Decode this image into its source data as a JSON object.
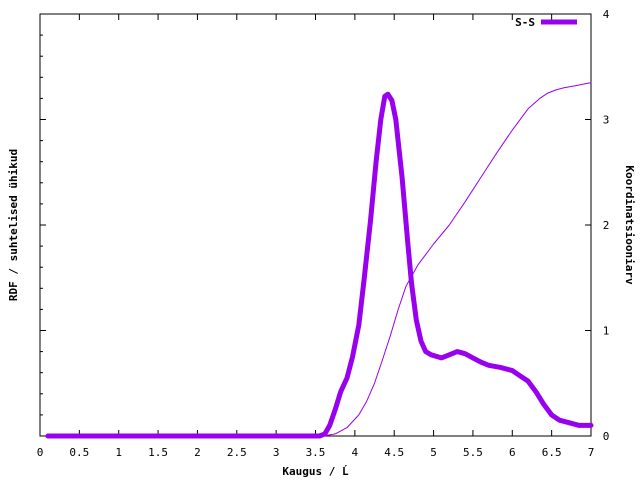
{
  "chart_data": {
    "type": "line",
    "title": "",
    "xlabel": "Kaugus / Ĺ",
    "ylabel": "RDF / suhtelised ühikud",
    "y2label": "Koordinatsiooniarv",
    "xlim": [
      0,
      7
    ],
    "y2lim": [
      0,
      4
    ],
    "xticks": [
      "0",
      "0.5",
      "1",
      "1.5",
      "2",
      "2.5",
      "3",
      "3.5",
      "4",
      "4.5",
      "5",
      "5.5",
      "6",
      "6.5",
      "7"
    ],
    "y2ticks": [
      "0",
      "1",
      "2",
      "3",
      "4"
    ],
    "legend": {
      "position": "top-right",
      "entries": [
        "S-S"
      ]
    },
    "grid": false,
    "color": "#9900ee",
    "series": [
      {
        "name": "S-S",
        "axis": "left",
        "x": [
          0.1,
          3.55,
          3.62,
          3.68,
          3.75,
          3.82,
          3.9,
          3.97,
          4.05,
          4.12,
          4.2,
          4.27,
          4.33,
          4.38,
          4.42,
          4.47,
          4.52,
          4.6,
          4.67,
          4.72,
          4.78,
          4.84,
          4.9,
          4.97,
          5.1,
          5.2,
          5.3,
          5.4,
          5.5,
          5.6,
          5.7,
          5.85,
          6.0,
          6.1,
          6.2,
          6.3,
          6.4,
          6.5,
          6.6,
          6.75,
          6.85,
          7.0
        ],
        "y": [
          0,
          0,
          0.02,
          0.1,
          0.25,
          0.42,
          0.55,
          0.75,
          1.05,
          1.5,
          2.05,
          2.6,
          3.0,
          3.22,
          3.24,
          3.18,
          3.0,
          2.45,
          1.85,
          1.45,
          1.1,
          0.9,
          0.8,
          0.77,
          0.74,
          0.77,
          0.8,
          0.78,
          0.74,
          0.7,
          0.67,
          0.65,
          0.62,
          0.57,
          0.52,
          0.42,
          0.3,
          0.2,
          0.15,
          0.12,
          0.1,
          0.1
        ]
      },
      {
        "name": "",
        "axis": "right",
        "x": [
          0.1,
          3.6,
          3.75,
          3.9,
          4.05,
          4.15,
          4.25,
          4.35,
          4.45,
          4.55,
          4.65,
          4.8,
          5.0,
          5.2,
          5.4,
          5.6,
          5.8,
          6.0,
          6.2,
          6.35,
          6.45,
          6.55,
          6.65,
          6.8,
          7.0
        ],
        "y": [
          0,
          0,
          0.02,
          0.08,
          0.2,
          0.33,
          0.5,
          0.72,
          0.95,
          1.2,
          1.42,
          1.62,
          1.82,
          2.0,
          2.22,
          2.45,
          2.68,
          2.9,
          3.1,
          3.2,
          3.25,
          3.28,
          3.3,
          3.32,
          3.35
        ]
      }
    ]
  }
}
